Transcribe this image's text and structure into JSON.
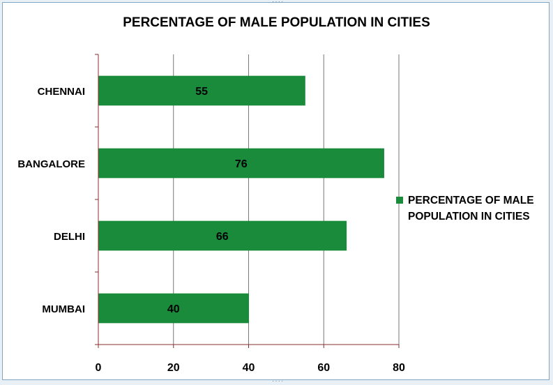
{
  "chart_data": {
    "type": "bar",
    "orientation": "horizontal",
    "title": "PERCENTAGE OF MALE POPULATION IN CITIES",
    "categories": [
      "CHENNAI",
      "BANGALORE",
      "DELHI",
      "MUMBAI"
    ],
    "series": [
      {
        "name": "PERCENTAGE OF MALE POPULATION IN CITIES",
        "values": [
          55,
          76,
          66,
          40
        ],
        "color": "#1a8b3a"
      }
    ],
    "xlim": [
      0,
      80
    ],
    "xticks": [
      0,
      20,
      40,
      60,
      80
    ],
    "grid": true,
    "legend_position": "right",
    "data_labels": true
  }
}
